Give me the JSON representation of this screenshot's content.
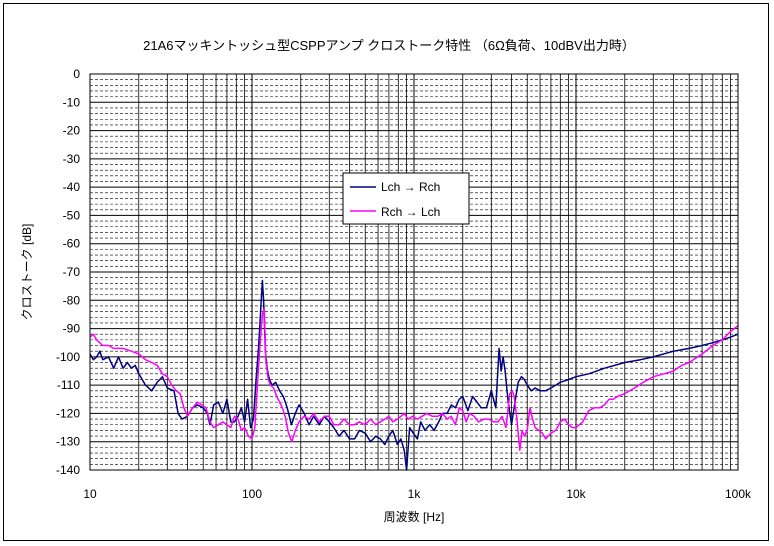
{
  "chart_data": {
    "type": "line",
    "title": "21A6マッキントッシュ型CSPPアンプ クロストーク特性 （6Ω負荷、10dBV出力時）",
    "xlabel": "周波数 [Hz]",
    "ylabel": "クロストーク [dB]",
    "x_scale": "log",
    "xlim": [
      10,
      100000
    ],
    "ylim": [
      -140,
      0
    ],
    "grid": true,
    "legend_position": "upper-center",
    "x_ticks": [
      10,
      100,
      1000,
      10000,
      100000
    ],
    "x_tick_labels": [
      "10",
      "100",
      "1k",
      "10k",
      "100k"
    ],
    "y_ticks": [
      0,
      -10,
      -20,
      -30,
      -40,
      -50,
      -60,
      -70,
      -80,
      -90,
      -100,
      -110,
      -120,
      -130,
      -140
    ],
    "y_tick_labels": [
      "0",
      "-10",
      "-20",
      "-30",
      "-40",
      "-50",
      "-60",
      "-70",
      "-80",
      "-90",
      "-100",
      "-110",
      "-120",
      "-130",
      "-140"
    ],
    "series": [
      {
        "name": "Lch → Rch",
        "color": "#000080",
        "points": [
          [
            10,
            -99
          ],
          [
            10.5,
            -101
          ],
          [
            11,
            -100
          ],
          [
            11.5,
            -98
          ],
          [
            12,
            -101
          ],
          [
            13,
            -100
          ],
          [
            14,
            -104
          ],
          [
            15,
            -100
          ],
          [
            16,
            -104
          ],
          [
            17,
            -102
          ],
          [
            18,
            -104
          ],
          [
            19,
            -103
          ],
          [
            20,
            -106
          ],
          [
            22,
            -110
          ],
          [
            24,
            -112
          ],
          [
            26,
            -109
          ],
          [
            28,
            -107
          ],
          [
            30,
            -111
          ],
          [
            33,
            -112
          ],
          [
            35,
            -120
          ],
          [
            37,
            -122
          ],
          [
            40,
            -121
          ],
          [
            43,
            -118
          ],
          [
            46,
            -117
          ],
          [
            50,
            -118
          ],
          [
            53,
            -120
          ],
          [
            55,
            -124
          ],
          [
            58,
            -117
          ],
          [
            62,
            -116
          ],
          [
            66,
            -120
          ],
          [
            70,
            -115
          ],
          [
            74,
            -123
          ],
          [
            78,
            -123
          ],
          [
            82,
            -121
          ],
          [
            86,
            -118
          ],
          [
            90,
            -123
          ],
          [
            94,
            -115
          ],
          [
            98,
            -125
          ],
          [
            102,
            -122
          ],
          [
            106,
            -108
          ],
          [
            110,
            -96
          ],
          [
            113,
            -84
          ],
          [
            116,
            -73
          ],
          [
            118,
            -80
          ],
          [
            121,
            -98
          ],
          [
            124,
            -104
          ],
          [
            128,
            -108
          ],
          [
            133,
            -110
          ],
          [
            140,
            -109
          ],
          [
            148,
            -112
          ],
          [
            156,
            -114
          ],
          [
            165,
            -118
          ],
          [
            175,
            -124
          ],
          [
            185,
            -120
          ],
          [
            195,
            -117
          ],
          [
            210,
            -120
          ],
          [
            225,
            -124
          ],
          [
            240,
            -121
          ],
          [
            260,
            -124
          ],
          [
            280,
            -121
          ],
          [
            300,
            -123
          ],
          [
            320,
            -125
          ],
          [
            345,
            -128
          ],
          [
            370,
            -126
          ],
          [
            400,
            -129
          ],
          [
            430,
            -129
          ],
          [
            460,
            -126
          ],
          [
            500,
            -127
          ],
          [
            540,
            -130
          ],
          [
            580,
            -128
          ],
          [
            620,
            -129
          ],
          [
            660,
            -131
          ],
          [
            700,
            -128
          ],
          [
            740,
            -126
          ],
          [
            790,
            -131
          ],
          [
            830,
            -129
          ],
          [
            870,
            -133
          ],
          [
            900,
            -140
          ],
          [
            940,
            -125
          ],
          [
            990,
            -127
          ],
          [
            1050,
            -129
          ],
          [
            1100,
            -123
          ],
          [
            1170,
            -126
          ],
          [
            1250,
            -124
          ],
          [
            1330,
            -126
          ],
          [
            1420,
            -123
          ],
          [
            1500,
            -120
          ],
          [
            1600,
            -120
          ],
          [
            1700,
            -117
          ],
          [
            1800,
            -118
          ],
          [
            1900,
            -115
          ],
          [
            2000,
            -114
          ],
          [
            2150,
            -119
          ],
          [
            2300,
            -114
          ],
          [
            2450,
            -116
          ],
          [
            2600,
            -118
          ],
          [
            2800,
            -118
          ],
          [
            3000,
            -112
          ],
          [
            3200,
            -118
          ],
          [
            3350,
            -97
          ],
          [
            3450,
            -105
          ],
          [
            3550,
            -100
          ],
          [
            3650,
            -105
          ],
          [
            3800,
            -115
          ],
          [
            4000,
            -124
          ],
          [
            4200,
            -116
          ],
          [
            4400,
            -109
          ],
          [
            4600,
            -107
          ],
          [
            4800,
            -108
          ],
          [
            5000,
            -110
          ],
          [
            5300,
            -112
          ],
          [
            5600,
            -111
          ],
          [
            6000,
            -112
          ],
          [
            6500,
            -112
          ],
          [
            7000,
            -111
          ],
          [
            7500,
            -110
          ],
          [
            8000,
            -109
          ],
          [
            9000,
            -108
          ],
          [
            10000,
            -107
          ],
          [
            12000,
            -106
          ],
          [
            15000,
            -104
          ],
          [
            20000,
            -102
          ],
          [
            25000,
            -101
          ],
          [
            30000,
            -100
          ],
          [
            40000,
            -98
          ],
          [
            50000,
            -97
          ],
          [
            60000,
            -96
          ],
          [
            70000,
            -95
          ],
          [
            80000,
            -94
          ],
          [
            90000,
            -93
          ],
          [
            100000,
            -92
          ]
        ]
      },
      {
        "name": "Rch → Lch",
        "color": "#ff00ff",
        "points": [
          [
            10,
            -93
          ],
          [
            10.5,
            -92
          ],
          [
            11,
            -94
          ],
          [
            12,
            -96
          ],
          [
            13,
            -96
          ],
          [
            14,
            -97
          ],
          [
            15,
            -97
          ],
          [
            16,
            -97
          ],
          [
            18,
            -98
          ],
          [
            20,
            -99
          ],
          [
            22,
            -101
          ],
          [
            24,
            -102
          ],
          [
            26,
            -103
          ],
          [
            28,
            -106
          ],
          [
            30,
            -107
          ],
          [
            32,
            -110
          ],
          [
            34,
            -112
          ],
          [
            36,
            -113
          ],
          [
            38,
            -118
          ],
          [
            40,
            -121
          ],
          [
            43,
            -118
          ],
          [
            46,
            -116
          ],
          [
            49,
            -117
          ],
          [
            52,
            -118
          ],
          [
            55,
            -123
          ],
          [
            58,
            -125
          ],
          [
            62,
            -124
          ],
          [
            66,
            -123
          ],
          [
            70,
            -124
          ],
          [
            74,
            -125
          ],
          [
            78,
            -121
          ],
          [
            82,
            -122
          ],
          [
            86,
            -126
          ],
          [
            90,
            -125
          ],
          [
            95,
            -128
          ],
          [
            100,
            -129
          ],
          [
            104,
            -125
          ],
          [
            108,
            -110
          ],
          [
            112,
            -96
          ],
          [
            116,
            -85
          ],
          [
            119,
            -83
          ],
          [
            122,
            -102
          ],
          [
            126,
            -108
          ],
          [
            130,
            -110
          ],
          [
            136,
            -111
          ],
          [
            142,
            -114
          ],
          [
            148,
            -116
          ],
          [
            154,
            -118
          ],
          [
            160,
            -121
          ],
          [
            168,
            -127
          ],
          [
            176,
            -130
          ],
          [
            185,
            -126
          ],
          [
            195,
            -123
          ],
          [
            210,
            -121
          ],
          [
            225,
            -122
          ],
          [
            240,
            -120
          ],
          [
            260,
            -123
          ],
          [
            280,
            -121
          ],
          [
            300,
            -121
          ],
          [
            320,
            -124
          ],
          [
            345,
            -124
          ],
          [
            370,
            -122
          ],
          [
            400,
            -124
          ],
          [
            430,
            -124
          ],
          [
            460,
            -123
          ],
          [
            500,
            -124
          ],
          [
            540,
            -122
          ],
          [
            580,
            -124
          ],
          [
            620,
            -123
          ],
          [
            660,
            -122
          ],
          [
            700,
            -121
          ],
          [
            740,
            -123
          ],
          [
            790,
            -122
          ],
          [
            830,
            -121
          ],
          [
            870,
            -120
          ],
          [
            920,
            -122
          ],
          [
            980,
            -121
          ],
          [
            1050,
            -122
          ],
          [
            1120,
            -121
          ],
          [
            1200,
            -120
          ],
          [
            1300,
            -121
          ],
          [
            1400,
            -121
          ],
          [
            1500,
            -120
          ],
          [
            1600,
            -122
          ],
          [
            1700,
            -121
          ],
          [
            1800,
            -124
          ],
          [
            1900,
            -118
          ],
          [
            2000,
            -119
          ],
          [
            2100,
            -123
          ],
          [
            2200,
            -120
          ],
          [
            2350,
            -121
          ],
          [
            2500,
            -123
          ],
          [
            2700,
            -122
          ],
          [
            2900,
            -122
          ],
          [
            3100,
            -123
          ],
          [
            3300,
            -123
          ],
          [
            3500,
            -121
          ],
          [
            3700,
            -125
          ],
          [
            3900,
            -113
          ],
          [
            4050,
            -112
          ],
          [
            4150,
            -114
          ],
          [
            4300,
            -121
          ],
          [
            4500,
            -133
          ],
          [
            4650,
            -126
          ],
          [
            4800,
            -128
          ],
          [
            5000,
            -126
          ],
          [
            5200,
            -118
          ],
          [
            5400,
            -122
          ],
          [
            5600,
            -125
          ],
          [
            5900,
            -126
          ],
          [
            6200,
            -127
          ],
          [
            6500,
            -129
          ],
          [
            7000,
            -127
          ],
          [
            7500,
            -126
          ],
          [
            8000,
            -123
          ],
          [
            8500,
            -122
          ],
          [
            9000,
            -124
          ],
          [
            9500,
            -125
          ],
          [
            10000,
            -125
          ],
          [
            11000,
            -123
          ],
          [
            12000,
            -119
          ],
          [
            13000,
            -118
          ],
          [
            14000,
            -118
          ],
          [
            15000,
            -117
          ],
          [
            16000,
            -115
          ],
          [
            17000,
            -115
          ],
          [
            18000,
            -114
          ],
          [
            20000,
            -113
          ],
          [
            23000,
            -111
          ],
          [
            26000,
            -109
          ],
          [
            30000,
            -107
          ],
          [
            35000,
            -106
          ],
          [
            40000,
            -105
          ],
          [
            45000,
            -103
          ],
          [
            50000,
            -102
          ],
          [
            60000,
            -99
          ],
          [
            70000,
            -96
          ],
          [
            80000,
            -94
          ],
          [
            90000,
            -91
          ],
          [
            100000,
            -89
          ]
        ]
      }
    ]
  }
}
